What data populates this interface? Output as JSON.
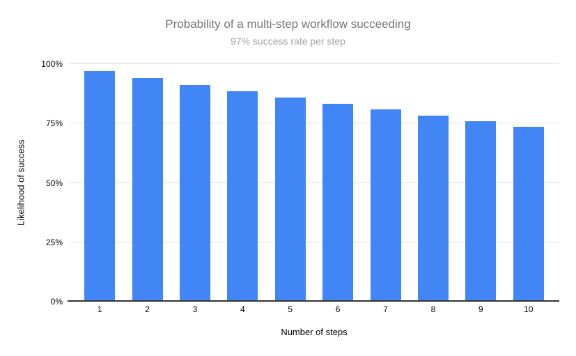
{
  "chart_data": {
    "type": "bar",
    "title": "Probability of a multi-step workflow succeeding",
    "subtitle": "97% success rate per step",
    "xlabel": "Number of steps",
    "ylabel": "Likelihood of success",
    "categories": [
      "1",
      "2",
      "3",
      "4",
      "5",
      "6",
      "7",
      "8",
      "9",
      "10"
    ],
    "values": [
      97,
      94.09,
      91.27,
      88.53,
      85.87,
      83.3,
      80.8,
      78.37,
      76.02,
      73.74
    ],
    "ylim": [
      0,
      100
    ],
    "yticks": {
      "labels": [
        "0%",
        "25%",
        "50%",
        "75%",
        "100%"
      ],
      "values": [
        0,
        25,
        50,
        75,
        100
      ]
    },
    "grid": "horizontal",
    "legend": "none",
    "colors": {
      "bar": "#4285f4",
      "title": "#757575",
      "subtitle": "#a3a3a3",
      "axis_text": "#000000",
      "gridline": "#e0e0e0",
      "axis_line": "#333333",
      "background": "#ffffff"
    }
  }
}
